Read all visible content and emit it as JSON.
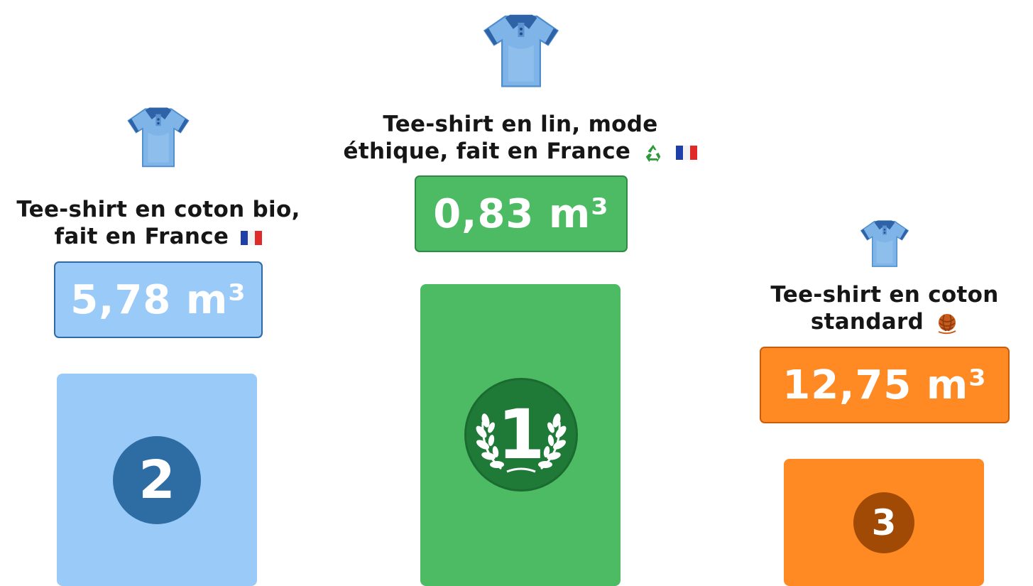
{
  "podium": [
    {
      "rank_label": "2",
      "title_lines": [
        "Tee-shirt en coton bio,",
        "fait en France"
      ],
      "title_icons": [
        "france-flag-icon"
      ],
      "value_label": "5,78 m³",
      "colors": {
        "box_fill": "#99caf8",
        "box_border": "#2f6aa3",
        "pillar": "#99caf8",
        "circle": "#2e6da4"
      }
    },
    {
      "rank_label": "1",
      "title_lines": [
        "Tee-shirt en lin, mode",
        "éthique, fait en France"
      ],
      "title_icons": [
        "recycle-icon",
        "france-flag-icon"
      ],
      "value_label": "0,83 m³",
      "colors": {
        "box_fill": "#4cbb63",
        "box_border": "#2f8a45",
        "pillar": "#4cbb63",
        "circle": "#1f7a37"
      }
    },
    {
      "rank_label": "3",
      "title_lines": [
        "Tee-shirt en coton",
        "standard"
      ],
      "title_icons": [
        "yarn-ball-icon"
      ],
      "value_label": "12,75 m³",
      "colors": {
        "box_fill": "#ff8a24",
        "box_border": "#c85e0c",
        "pillar": "#ff8a24",
        "circle": "#a14a06"
      }
    }
  ]
}
